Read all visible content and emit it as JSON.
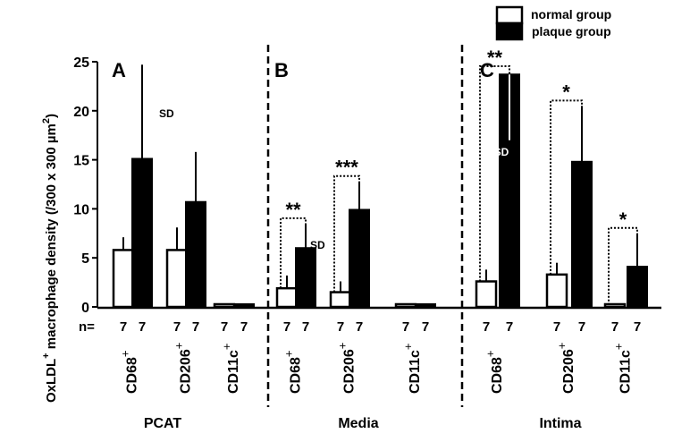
{
  "chart_data": {
    "type": "bar",
    "ylabel": "OxLDL",
    "ylabel_sup": "+",
    "ylabel_rest": " macrophage density (/300 x 300 µm",
    "ylabel_sup2": "2",
    "ylabel_end": ")",
    "ylim": [
      0,
      25
    ],
    "yticks": [
      "0",
      "5",
      "10",
      "15",
      "20",
      "25"
    ],
    "ytick_values": [
      0,
      5,
      10,
      15,
      20,
      25
    ],
    "n_label": "n=",
    "legend": {
      "placement": "top-right",
      "entries": [
        {
          "name": "normal group",
          "color": "#ffffff"
        },
        {
          "name": "plaque group",
          "color": "#000000"
        }
      ]
    },
    "colors": {
      "normal": "#ffffff",
      "plaque": "#000000",
      "edge": "#000000"
    },
    "sd_label": "SD",
    "panels": [
      {
        "letter": "A",
        "region": "PCAT",
        "categories": [
          {
            "label": "CD68",
            "sup": "+",
            "normal": 5.8,
            "normal_sd": 1.3,
            "plaque": 15.1,
            "plaque_sd": 9.6,
            "n_normal": "7",
            "n_plaque": "7",
            "sig": ""
          },
          {
            "label": "CD206",
            "sup": "+",
            "normal": 5.8,
            "normal_sd": 2.3,
            "plaque": 10.7,
            "plaque_sd": 5.1,
            "n_normal": "7",
            "n_plaque": "7",
            "sig": ""
          },
          {
            "label": "CD11c",
            "sup": "+",
            "normal": 0.15,
            "normal_sd": 0,
            "plaque": 0.2,
            "plaque_sd": 0,
            "n_normal": "7",
            "n_plaque": "7",
            "sig": ""
          }
        ]
      },
      {
        "letter": "B",
        "region": "Media",
        "categories": [
          {
            "label": "CD68",
            "sup": "+",
            "normal": 1.9,
            "normal_sd": 1.3,
            "plaque": 6.0,
            "plaque_sd": 2.5,
            "n_normal": "7",
            "n_plaque": "7",
            "sig": "**"
          },
          {
            "label": "CD206",
            "sup": "+",
            "normal": 1.5,
            "normal_sd": 1.1,
            "plaque": 9.9,
            "plaque_sd": 2.9,
            "n_normal": "7",
            "n_plaque": "7",
            "sig": "***"
          },
          {
            "label": "CD11c",
            "sup": "+",
            "normal": 0.1,
            "normal_sd": 0,
            "plaque": 0.1,
            "plaque_sd": 0,
            "n_normal": "7",
            "n_plaque": "7",
            "sig": ""
          }
        ]
      },
      {
        "letter": "C",
        "region": "Intima",
        "categories": [
          {
            "label": "CD68",
            "sup": "+",
            "normal": 2.6,
            "normal_sd": 1.2,
            "plaque": 23.7,
            "plaque_sd": -6.7,
            "n_normal": "7",
            "n_plaque": "7",
            "sig": "**"
          },
          {
            "label": "CD206",
            "sup": "+",
            "normal": 3.3,
            "normal_sd": 1.2,
            "plaque": 14.8,
            "plaque_sd": 5.7,
            "n_normal": "7",
            "n_plaque": "7",
            "sig": "*"
          },
          {
            "label": "CD11c",
            "sup": "+",
            "normal": 0.2,
            "normal_sd": 0,
            "plaque": 4.1,
            "plaque_sd": 3.4,
            "n_normal": "7",
            "n_plaque": "7",
            "sig": "*"
          }
        ]
      }
    ]
  }
}
